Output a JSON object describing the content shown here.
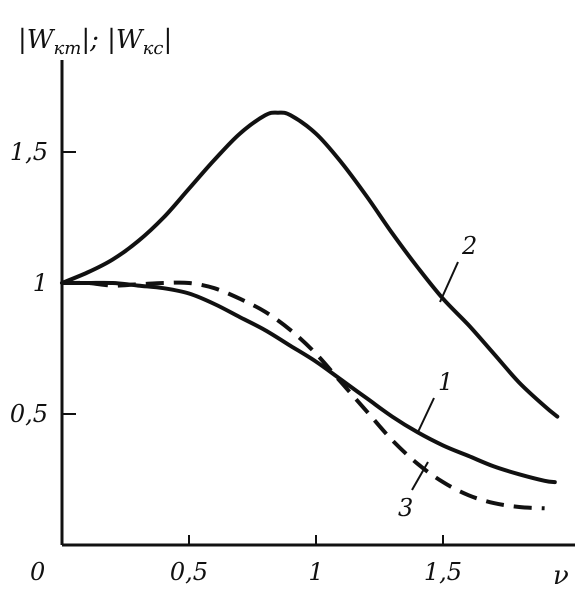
{
  "chart_data": {
    "type": "line",
    "xlabel": "ν",
    "ylabel": "|W",
    "ylabel_sub1": "кт",
    "ylabel_mid": "|; |W",
    "ylabel_sub2": "кс",
    "ylabel_end": "|",
    "origin_label": "0",
    "xlim": [
      0,
      2
    ],
    "ylim": [
      0,
      1.9
    ],
    "x_ticks": [
      {
        "value": 0.5,
        "label": "0,5"
      },
      {
        "value": 1,
        "label": "1"
      },
      {
        "value": 1.5,
        "label": "1,5"
      }
    ],
    "y_ticks": [
      {
        "value": 0.5,
        "label": "0,5"
      },
      {
        "value": 1,
        "label": "1"
      },
      {
        "value": 1.5,
        "label": "1,5"
      }
    ],
    "grid": false,
    "series": [
      {
        "name": "1",
        "style": "solid",
        "x": [
          0,
          0.1,
          0.2,
          0.3,
          0.4,
          0.5,
          0.6,
          0.7,
          0.8,
          0.9,
          1.0,
          1.1,
          1.2,
          1.3,
          1.4,
          1.5,
          1.6,
          1.7,
          1.8,
          1.9,
          1.94
        ],
        "y": [
          1.0,
          1.0,
          1.0,
          0.99,
          0.98,
          0.96,
          0.92,
          0.87,
          0.82,
          0.76,
          0.7,
          0.63,
          0.56,
          0.49,
          0.43,
          0.38,
          0.34,
          0.3,
          0.27,
          0.245,
          0.24
        ]
      },
      {
        "name": "2",
        "style": "solid",
        "x": [
          0,
          0.1,
          0.2,
          0.3,
          0.4,
          0.5,
          0.6,
          0.7,
          0.8,
          0.85,
          0.9,
          1.0,
          1.1,
          1.2,
          1.3,
          1.4,
          1.5,
          1.6,
          1.7,
          1.8,
          1.9,
          1.95
        ],
        "y": [
          1.0,
          1.04,
          1.09,
          1.16,
          1.25,
          1.36,
          1.47,
          1.57,
          1.64,
          1.65,
          1.64,
          1.57,
          1.46,
          1.33,
          1.19,
          1.06,
          0.94,
          0.84,
          0.73,
          0.62,
          0.53,
          0.49
        ]
      },
      {
        "name": "3",
        "style": "dashed",
        "x": [
          0,
          0.1,
          0.2,
          0.3,
          0.4,
          0.5,
          0.6,
          0.7,
          0.8,
          0.9,
          1.0,
          1.1,
          1.2,
          1.3,
          1.4,
          1.5,
          1.6,
          1.7,
          1.8,
          1.9
        ],
        "y": [
          1.0,
          1.0,
          0.99,
          0.995,
          1.0,
          1.0,
          0.98,
          0.94,
          0.89,
          0.82,
          0.73,
          0.62,
          0.51,
          0.4,
          0.31,
          0.24,
          0.19,
          0.16,
          0.145,
          0.14
        ]
      }
    ]
  }
}
